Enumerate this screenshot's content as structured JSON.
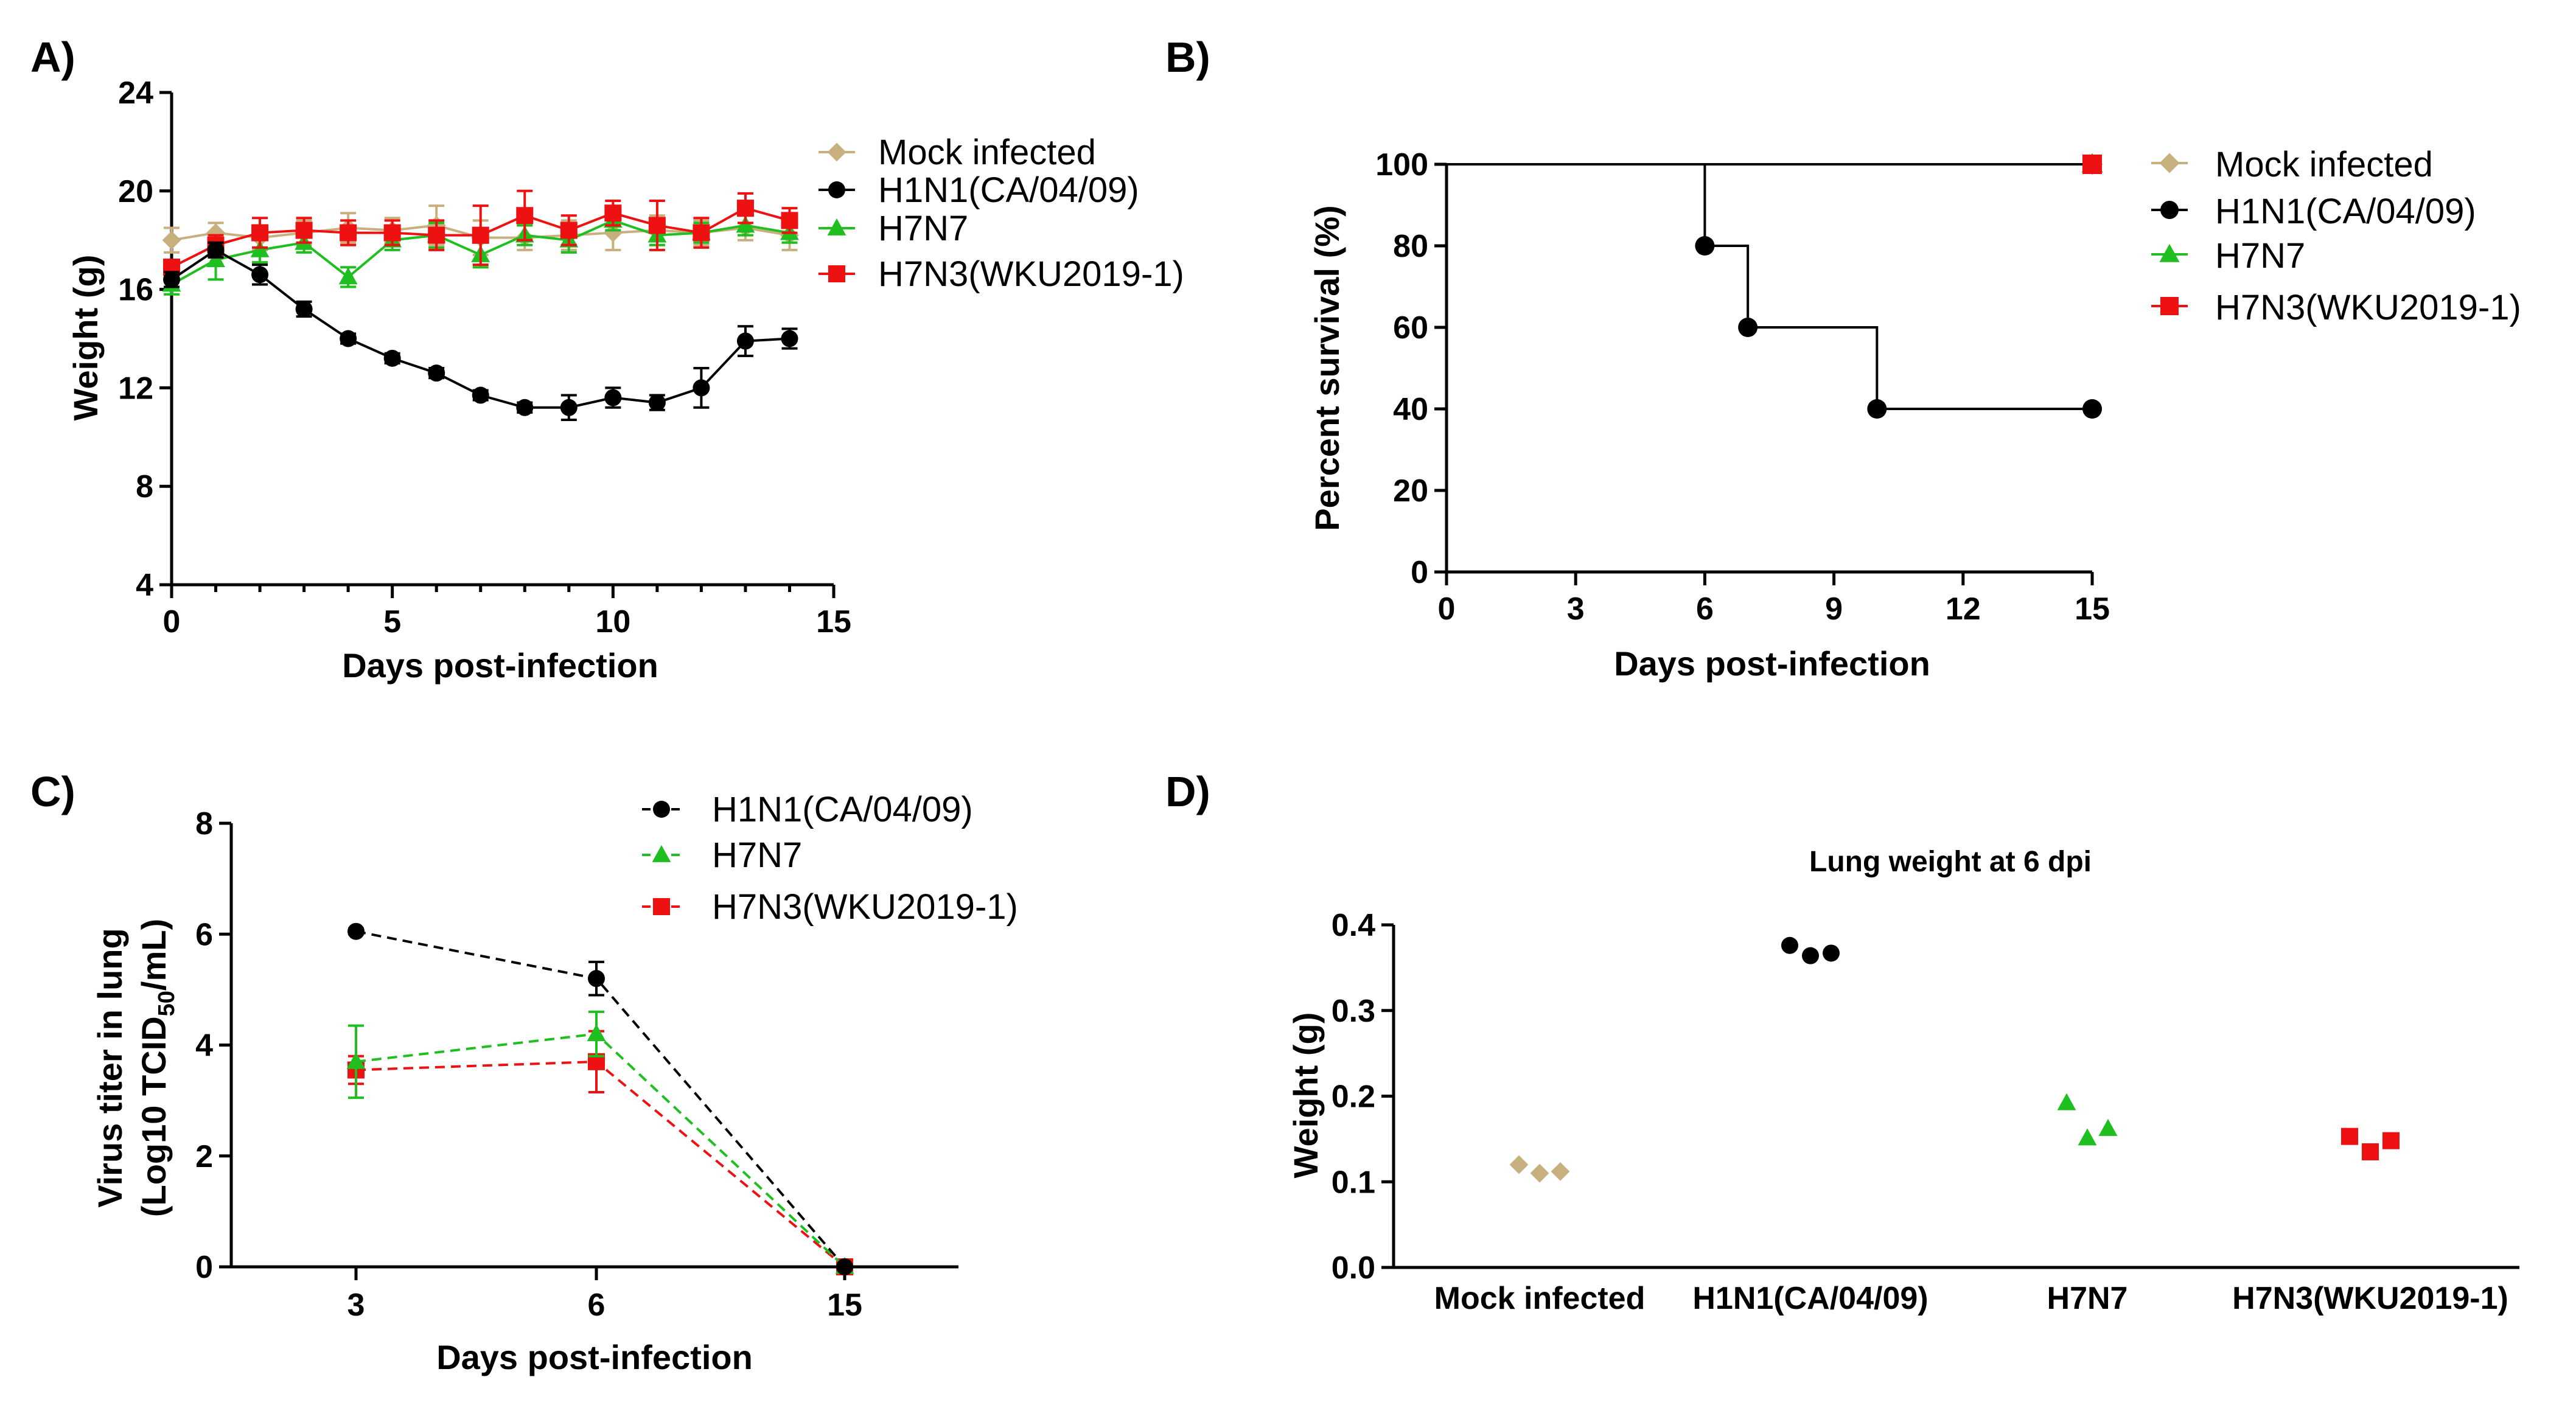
{
  "colors": {
    "mock": "#c8b07e",
    "h1n1": "#000000",
    "h7n7": "#1fbf1f",
    "h7n3": "#ee1111"
  },
  "chart_data": [
    {
      "id": "A",
      "panel_label": "A)",
      "type": "line",
      "xlabel": "Days post-infection",
      "ylabel": "Weight (g)",
      "xlim": [
        0,
        15
      ],
      "ylim": [
        4,
        24
      ],
      "xticks": [
        0,
        5,
        10,
        15
      ],
      "yticks": [
        4,
        8,
        12,
        16,
        20,
        24
      ],
      "x": [
        0,
        1,
        2,
        3,
        4,
        5,
        6,
        7,
        8,
        9,
        10,
        11,
        12,
        13,
        14
      ],
      "legend": [
        "Mock infected",
        "H1N1(CA/04/09)",
        "H7N7",
        "H7N3(WKU2019-1)"
      ],
      "series": [
        {
          "name": "Mock infected",
          "color_key": "mock",
          "marker": "diamond",
          "values": [
            18.0,
            18.3,
            18.1,
            18.3,
            18.5,
            18.4,
            18.6,
            18.1,
            18.1,
            18.2,
            18.3,
            18.4,
            18.3,
            18.5,
            18.2
          ],
          "err": [
            0.5,
            0.4,
            0.5,
            0.5,
            0.6,
            0.5,
            0.8,
            0.7,
            0.5,
            0.6,
            0.7,
            0.6,
            0.5,
            0.5,
            0.6
          ]
        },
        {
          "name": "H1N1(CA/04/09)",
          "color_key": "h1n1",
          "marker": "circle",
          "values": [
            16.4,
            17.6,
            16.6,
            15.2,
            14.0,
            13.2,
            12.6,
            11.7,
            11.2,
            11.2,
            11.6,
            11.4,
            12.0,
            13.9,
            14.0
          ],
          "err": [
            0.3,
            0.3,
            0.4,
            0.3,
            0.2,
            0.2,
            0.2,
            0.2,
            0.2,
            0.5,
            0.4,
            0.3,
            0.8,
            0.6,
            0.4
          ]
        },
        {
          "name": "H7N7",
          "color_key": "h7n7",
          "marker": "triangle",
          "values": [
            16.2,
            17.2,
            17.6,
            17.9,
            16.5,
            18.0,
            18.2,
            17.4,
            18.2,
            18.0,
            18.8,
            18.2,
            18.3,
            18.6,
            18.3
          ],
          "err": [
            0.4,
            0.8,
            0.5,
            0.4,
            0.4,
            0.4,
            0.5,
            0.5,
            0.4,
            0.5,
            0.4,
            0.4,
            0.4,
            0.4,
            0.4
          ]
        },
        {
          "name": "H7N3(WKU2019-1)",
          "color_key": "h7n3",
          "marker": "square",
          "values": [
            16.9,
            17.8,
            18.3,
            18.4,
            18.3,
            18.3,
            18.2,
            18.2,
            19.0,
            18.4,
            19.1,
            18.6,
            18.3,
            19.3,
            18.8
          ],
          "err": [
            0.3,
            0.4,
            0.6,
            0.5,
            0.5,
            0.5,
            0.6,
            1.2,
            1.0,
            0.6,
            0.5,
            1.0,
            0.6,
            0.6,
            0.5
          ]
        }
      ]
    },
    {
      "id": "B",
      "panel_label": "B)",
      "type": "line",
      "subtype": "step",
      "xlabel": "Days post-infection",
      "ylabel": "Percent survival (%)",
      "xlim": [
        0,
        15
      ],
      "ylim": [
        0,
        100
      ],
      "xticks": [
        0,
        3,
        6,
        9,
        12,
        15
      ],
      "yticks": [
        0,
        20,
        40,
        60,
        80,
        100
      ],
      "legend": [
        "Mock infected",
        "H1N1(CA/04/09)",
        "H7N7",
        "H7N3(WKU2019-1)"
      ],
      "series": [
        {
          "name": "Mock infected",
          "color_key": "mock",
          "marker": "diamond",
          "x": [
            0,
            15
          ],
          "values": [
            100,
            100
          ]
        },
        {
          "name": "H1N1(CA/04/09)",
          "color_key": "h1n1",
          "marker": "circle",
          "x": [
            0,
            6,
            7,
            10,
            15
          ],
          "values": [
            100,
            80,
            60,
            40,
            40
          ]
        },
        {
          "name": "H7N7",
          "color_key": "h7n7",
          "marker": "triangle",
          "x": [
            0,
            15
          ],
          "values": [
            100,
            100
          ]
        },
        {
          "name": "H7N3(WKU2019-1)",
          "color_key": "h7n3",
          "marker": "square",
          "x": [
            0,
            15
          ],
          "values": [
            100,
            100
          ]
        }
      ]
    },
    {
      "id": "C",
      "panel_label": "C)",
      "type": "line",
      "xlabel": "Days post-infection",
      "ylabel_line1": "Virus titer in lung",
      "ylabel_line2_pre": "(Log10 TCID",
      "ylabel_line2_sub": "50",
      "ylabel_line2_post": "/mL)",
      "categories": [
        "3",
        "6",
        "15"
      ],
      "ylim": [
        0,
        8
      ],
      "yticks": [
        0,
        2,
        4,
        6,
        8
      ],
      "legend": [
        "H1N1(CA/04/09)",
        "H7N7",
        "H7N3(WKU2019-1)"
      ],
      "series": [
        {
          "name": "H1N1(CA/04/09)",
          "color_key": "h1n1",
          "marker": "circle",
          "values": [
            6.05,
            5.2,
            0
          ],
          "err": [
            0.05,
            0.3,
            0
          ]
        },
        {
          "name": "H7N7",
          "color_key": "h7n7",
          "marker": "triangle",
          "values": [
            3.7,
            4.2,
            0
          ],
          "err": [
            0.65,
            0.4,
            0
          ]
        },
        {
          "name": "H7N3(WKU2019-1)",
          "color_key": "h7n3",
          "marker": "square",
          "values": [
            3.55,
            3.7,
            0
          ],
          "err": [
            0.25,
            0.55,
            0
          ]
        }
      ]
    },
    {
      "id": "D",
      "panel_label": "D)",
      "type": "scatter",
      "title": "Lung weight at 6 dpi",
      "ylabel": "Weight (g)",
      "categories": [
        "Mock infected",
        "H1N1(CA/04/09)",
        "H7N7",
        "H7N3(WKU2019-1)"
      ],
      "ylim": [
        0,
        0.4
      ],
      "yticks": [
        "0.0",
        "0.1",
        "0.2",
        "0.3",
        "0.4"
      ],
      "groups": [
        {
          "name": "Mock infected",
          "color_key": "mock",
          "marker": "diamond",
          "values": [
            0.12,
            0.11,
            0.112
          ]
        },
        {
          "name": "H1N1(CA/04/09)",
          "color_key": "h1n1",
          "marker": "circle",
          "values": [
            0.376,
            0.364,
            0.367
          ]
        },
        {
          "name": "H7N7",
          "color_key": "h7n7",
          "marker": "triangle",
          "values": [
            0.192,
            0.151,
            0.162
          ]
        },
        {
          "name": "H7N3(WKU2019-1)",
          "color_key": "h7n3",
          "marker": "square",
          "values": [
            0.153,
            0.135,
            0.148
          ]
        }
      ]
    }
  ]
}
